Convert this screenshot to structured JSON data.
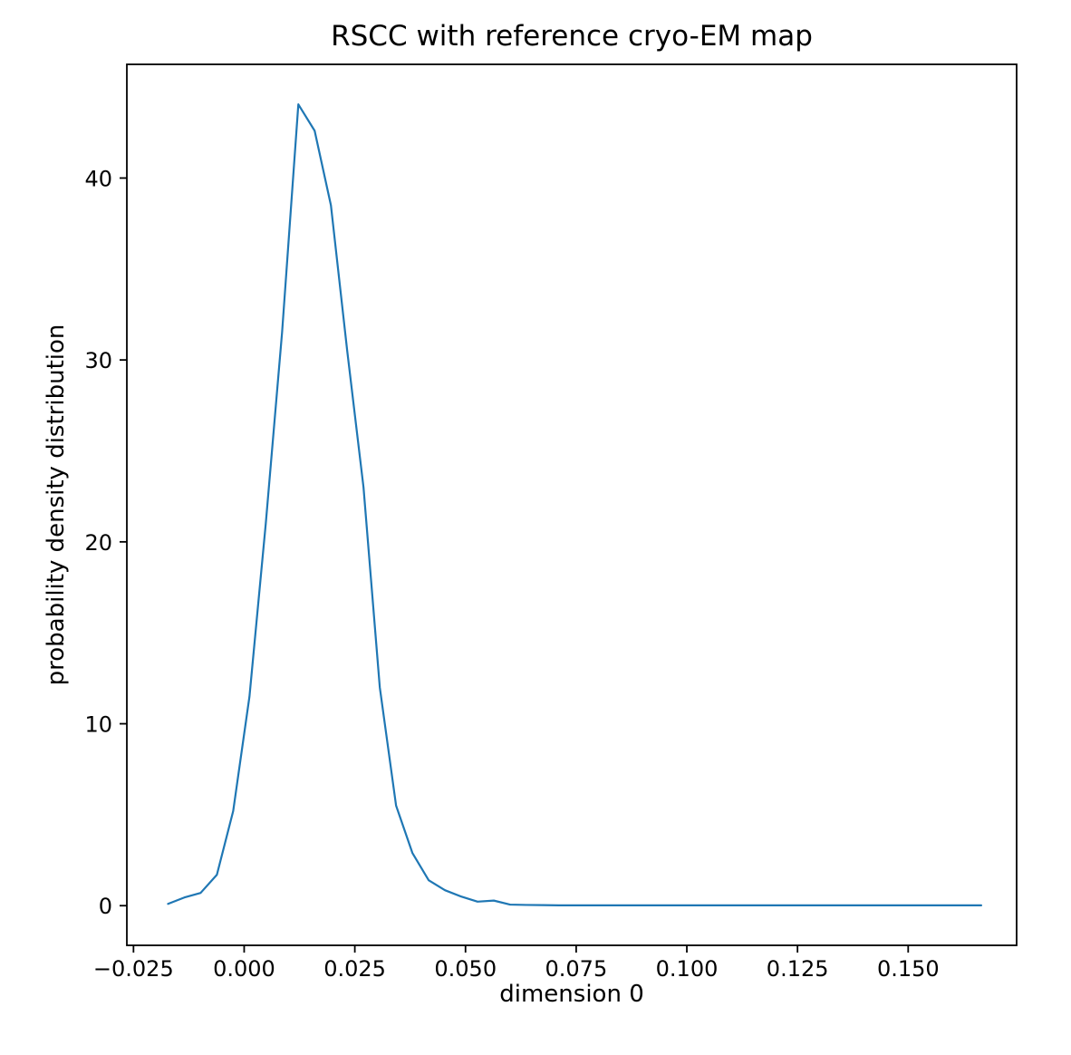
{
  "chart_data": {
    "type": "line",
    "title": "RSCC with reference cryo-EM map",
    "xlabel": "dimension 0",
    "ylabel": "probability density distribution",
    "xlim": [
      -0.0265,
      0.1745
    ],
    "ylim": [
      -2.18,
      46.25
    ],
    "xticks": [
      -0.025,
      0.0,
      0.025,
      0.05,
      0.075,
      0.1,
      0.125,
      0.15
    ],
    "xtick_labels": [
      "−0.025",
      "0.000",
      "0.025",
      "0.050",
      "0.075",
      "0.100",
      "0.125",
      "0.150"
    ],
    "yticks": [
      0,
      10,
      20,
      30,
      40
    ],
    "grid": false,
    "legend": null,
    "line_color": "#1f77b4",
    "axis_color": "#000000",
    "background_color": "#ffffff",
    "series": [
      {
        "name": "density",
        "x": [
          -0.0172,
          -0.01352,
          -0.00984,
          -0.00616,
          -0.00248,
          0.0012,
          0.00488,
          0.00856,
          0.01224,
          0.01592,
          0.0196,
          0.02328,
          0.02696,
          0.03064,
          0.03432,
          0.038,
          0.04168,
          0.04536,
          0.04904,
          0.05272,
          0.0564,
          0.06008,
          0.06376,
          0.06744,
          0.07112,
          0.0748,
          0.07848,
          0.08216,
          0.08584,
          0.08952,
          0.0932,
          0.09688,
          0.10056,
          0.10424,
          0.10792,
          0.1116,
          0.11528,
          0.11896,
          0.12264,
          0.12632,
          0.13,
          0.13368,
          0.13736,
          0.14104,
          0.14472,
          0.1484,
          0.15208,
          0.15576,
          0.15944,
          0.16312,
          0.1665
        ],
        "y": [
          0.1,
          0.45,
          0.7,
          1.7,
          5.2,
          11.5,
          21.0,
          31.5,
          44.05,
          42.6,
          38.5,
          30.5,
          23.0,
          12.0,
          5.5,
          2.9,
          1.4,
          0.85,
          0.5,
          0.22,
          0.28,
          0.06,
          0.04,
          0.03,
          0.02,
          0.02,
          0.02,
          0.02,
          0.02,
          0.02,
          0.02,
          0.02,
          0.02,
          0.02,
          0.02,
          0.02,
          0.02,
          0.02,
          0.02,
          0.02,
          0.02,
          0.02,
          0.02,
          0.02,
          0.02,
          0.02,
          0.02,
          0.02,
          0.02,
          0.02,
          0.02
        ]
      }
    ]
  }
}
